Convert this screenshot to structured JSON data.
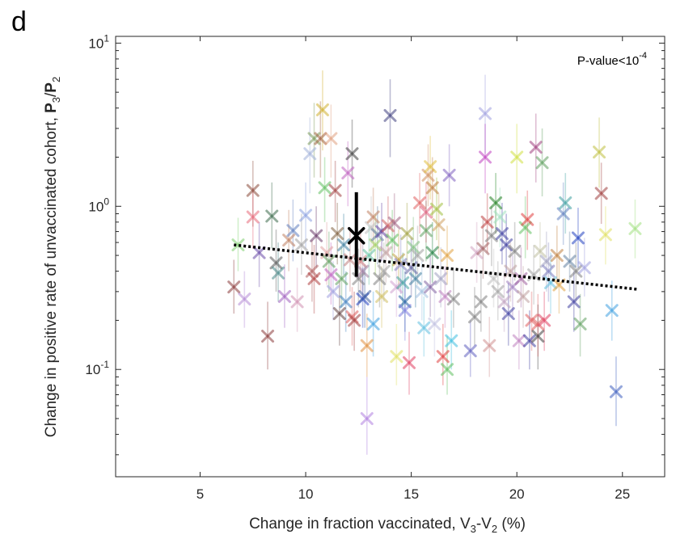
{
  "panel_label": "d",
  "chart_data": {
    "type": "scatter",
    "y_scale": "log",
    "grid": false,
    "xlim": [
      1,
      27
    ],
    "ylim": [
      0.022,
      11
    ],
    "x_ticks": [
      5,
      10,
      15,
      20,
      25
    ],
    "x_tick_labels": [
      "5",
      "10",
      "15",
      "20",
      "25"
    ],
    "y_ticks": [
      {
        "value": 0.1,
        "base": "10",
        "exp": "-1"
      },
      {
        "value": 1,
        "base": "10",
        "exp": "0"
      },
      {
        "value": 10,
        "base": "10",
        "exp": "1"
      }
    ],
    "xlabel": {
      "pre": "Change in fraction vaccinated, V",
      "sub1": "3",
      "mid": "-V",
      "sub2": "2",
      "post": " (%)"
    },
    "ylabel": {
      "pre": "Change in positive rate of unvaccinated cohort, ",
      "p1": "P",
      "s1": "3",
      "slash": "/",
      "p2": "P",
      "s2": "2"
    },
    "annotation": {
      "text": "P-value<10",
      "exp": "-4"
    },
    "trend_line": {
      "x": [
        6.6,
        25.7
      ],
      "y": [
        0.58,
        0.31
      ],
      "style": "dotted",
      "color": "#000000"
    },
    "mean_marker": {
      "x": 12.4,
      "y": 0.66,
      "ci": [
        0.37,
        1.22
      ],
      "color": "#000000"
    },
    "series": [
      {
        "points": [
          [
            6.6,
            0.32,
            0.22,
            0.47,
            "#8b3a3a"
          ],
          [
            6.8,
            0.58,
            0.4,
            0.85,
            "#7fd06f"
          ],
          [
            7.1,
            0.27,
            0.18,
            0.4,
            "#b58ad6"
          ],
          [
            7.5,
            1.25,
            0.75,
            1.9,
            "#8b4a3a"
          ],
          [
            7.5,
            0.86,
            0.55,
            1.3,
            "#e86a7a"
          ],
          [
            7.8,
            0.52,
            0.32,
            0.8,
            "#6a4aa8"
          ],
          [
            8.2,
            0.16,
            0.1,
            0.26,
            "#8b3a3a"
          ],
          [
            8.4,
            0.87,
            0.55,
            1.4,
            "#3a6a4a"
          ],
          [
            8.6,
            0.45,
            0.3,
            0.72,
            "#5a5a5a"
          ],
          [
            8.7,
            0.39,
            0.26,
            0.6,
            "#4a8a8a"
          ],
          [
            9.0,
            0.28,
            0.18,
            0.44,
            "#a060c0"
          ],
          [
            9.2,
            0.62,
            0.4,
            0.95,
            "#c08060"
          ],
          [
            9.4,
            0.71,
            0.46,
            1.1,
            "#6080c0"
          ],
          [
            9.6,
            0.26,
            0.17,
            0.42,
            "#d090b0"
          ],
          [
            9.8,
            0.58,
            0.38,
            0.9,
            "#a0a0a0"
          ],
          [
            10.0,
            0.88,
            0.55,
            1.4,
            "#8aa0e0"
          ],
          [
            10.2,
            2.1,
            1.2,
            3.5,
            "#a0b0d8"
          ],
          [
            10.3,
            0.4,
            0.26,
            0.62,
            "#b06060"
          ],
          [
            10.4,
            0.36,
            0.22,
            0.58,
            "#b04040"
          ],
          [
            10.4,
            2.6,
            1.5,
            4.3,
            "#7a9a5a"
          ],
          [
            10.5,
            0.66,
            0.42,
            1.0,
            "#6a3a6a"
          ],
          [
            10.7,
            2.6,
            1.5,
            4.4,
            "#a06040"
          ],
          [
            10.8,
            3.9,
            2.2,
            6.8,
            "#d0b030"
          ],
          [
            10.9,
            1.3,
            0.8,
            2.0,
            "#60c060"
          ],
          [
            11.0,
            0.52,
            0.33,
            0.8,
            "#e0a0a0"
          ],
          [
            11.1,
            0.46,
            0.3,
            0.7,
            "#60a060"
          ],
          [
            11.2,
            2.6,
            1.5,
            4.2,
            "#e0a080"
          ],
          [
            11.2,
            0.38,
            0.25,
            0.6,
            "#c060c0"
          ],
          [
            11.3,
            0.3,
            0.2,
            0.46,
            "#a0a0e0"
          ],
          [
            11.4,
            1.25,
            0.8,
            1.9,
            "#a04040"
          ],
          [
            11.5,
            0.68,
            0.44,
            1.05,
            "#806040"
          ],
          [
            11.6,
            0.22,
            0.14,
            0.35,
            "#604040"
          ],
          [
            11.7,
            0.36,
            0.24,
            0.56,
            "#60a060"
          ],
          [
            11.8,
            0.58,
            0.38,
            0.9,
            "#4080a0"
          ],
          [
            11.9,
            0.26,
            0.17,
            0.4,
            "#4080c0"
          ],
          [
            12.0,
            1.6,
            1.0,
            2.5,
            "#c060c0"
          ],
          [
            12.1,
            0.47,
            0.3,
            0.72,
            "#c08080"
          ],
          [
            12.2,
            2.1,
            1.3,
            3.4,
            "#404040"
          ],
          [
            12.2,
            0.21,
            0.14,
            0.32,
            "#e06060"
          ],
          [
            12.3,
            0.2,
            0.13,
            0.3,
            "#a04040"
          ],
          [
            12.5,
            0.36,
            0.24,
            0.55,
            "#808080"
          ],
          [
            12.6,
            0.46,
            0.3,
            0.7,
            "#d08080"
          ],
          [
            12.7,
            0.27,
            0.18,
            0.42,
            "#2040c0"
          ],
          [
            12.7,
            0.4,
            0.27,
            0.6,
            "#a080a0"
          ],
          [
            12.8,
            0.28,
            0.18,
            0.44,
            "#4060a0"
          ],
          [
            12.9,
            0.14,
            0.09,
            0.22,
            "#e09040"
          ],
          [
            12.9,
            0.05,
            0.03,
            0.09,
            "#b080e0"
          ],
          [
            13.0,
            0.5,
            0.33,
            0.76,
            "#60c0a0"
          ],
          [
            13.1,
            0.74,
            0.48,
            1.15,
            "#c0c0c0"
          ],
          [
            13.2,
            0.86,
            0.56,
            1.3,
            "#c08060"
          ],
          [
            13.2,
            0.19,
            0.12,
            0.3,
            "#40a0e0"
          ],
          [
            13.3,
            0.58,
            0.38,
            0.9,
            "#a0d060"
          ],
          [
            13.4,
            0.67,
            0.44,
            1.0,
            "#6080a0"
          ],
          [
            13.5,
            0.36,
            0.24,
            0.55,
            "#808080"
          ],
          [
            13.6,
            0.28,
            0.18,
            0.43,
            "#d0c060"
          ],
          [
            13.6,
            0.7,
            0.46,
            1.05,
            "#6040a0"
          ],
          [
            13.7,
            0.4,
            0.26,
            0.6,
            "#a0a0a0"
          ],
          [
            13.8,
            0.52,
            0.34,
            0.8,
            "#c0a0a0"
          ],
          [
            13.9,
            0.76,
            0.5,
            1.15,
            "#d06060"
          ],
          [
            14.0,
            3.6,
            2.0,
            6.0,
            "#404080"
          ],
          [
            14.1,
            0.62,
            0.4,
            0.95,
            "#60c060"
          ],
          [
            14.2,
            0.79,
            0.52,
            1.2,
            "#a06080"
          ],
          [
            14.3,
            0.32,
            0.21,
            0.5,
            "#d0a0d0"
          ],
          [
            14.3,
            0.12,
            0.08,
            0.19,
            "#e0e060"
          ],
          [
            14.4,
            0.47,
            0.31,
            0.72,
            "#c0a040"
          ],
          [
            14.5,
            0.44,
            0.29,
            0.67,
            "#8080c0"
          ],
          [
            14.6,
            0.34,
            0.22,
            0.52,
            "#40a0a0"
          ],
          [
            14.7,
            0.26,
            0.17,
            0.4,
            "#2060a0"
          ],
          [
            14.7,
            0.23,
            0.15,
            0.36,
            "#8080e0"
          ],
          [
            14.8,
            0.68,
            0.44,
            1.05,
            "#a0a040"
          ],
          [
            14.9,
            0.11,
            0.07,
            0.17,
            "#e04060"
          ],
          [
            15.0,
            0.42,
            0.28,
            0.64,
            "#6060a0"
          ],
          [
            15.1,
            0.56,
            0.37,
            0.86,
            "#80c080"
          ],
          [
            15.2,
            0.36,
            0.24,
            0.56,
            "#4080a0"
          ],
          [
            15.3,
            0.5,
            0.33,
            0.76,
            "#a0a0a0"
          ],
          [
            15.4,
            1.05,
            0.68,
            1.6,
            "#e06060"
          ],
          [
            15.5,
            0.3,
            0.2,
            0.46,
            "#a0c0e0"
          ],
          [
            15.6,
            0.18,
            0.12,
            0.28,
            "#60c0e0"
          ],
          [
            15.7,
            0.71,
            0.46,
            1.08,
            "#60a060"
          ],
          [
            15.7,
            0.92,
            0.6,
            1.4,
            "#e06080"
          ],
          [
            15.8,
            1.55,
            1.0,
            2.4,
            "#d09060"
          ],
          [
            15.9,
            1.75,
            1.1,
            2.7,
            "#e0c040"
          ],
          [
            15.9,
            0.32,
            0.21,
            0.5,
            "#8060a0"
          ],
          [
            16.0,
            0.52,
            0.34,
            0.8,
            "#208040"
          ],
          [
            16.0,
            1.3,
            0.85,
            2.0,
            "#c08040"
          ],
          [
            16.1,
            0.19,
            0.12,
            0.3,
            "#c0c0e0"
          ],
          [
            16.2,
            0.96,
            0.62,
            1.5,
            "#a0c040"
          ],
          [
            16.3,
            0.77,
            0.5,
            1.2,
            "#d0a060"
          ],
          [
            16.4,
            0.36,
            0.24,
            0.56,
            "#a0a0c0"
          ],
          [
            16.5,
            0.12,
            0.08,
            0.19,
            "#e04040"
          ],
          [
            16.6,
            0.28,
            0.18,
            0.43,
            "#c080c0"
          ],
          [
            16.7,
            0.1,
            0.07,
            0.16,
            "#60c060"
          ],
          [
            16.7,
            0.5,
            0.33,
            0.76,
            "#e0a040"
          ],
          [
            16.8,
            1.55,
            1.0,
            2.4,
            "#8060c0"
          ],
          [
            16.9,
            0.15,
            0.1,
            0.23,
            "#40c0e0"
          ],
          [
            17.0,
            0.27,
            0.18,
            0.42,
            "#808080"
          ],
          [
            17.8,
            0.13,
            0.09,
            0.2,
            "#6060c0"
          ],
          [
            18.0,
            0.21,
            0.14,
            0.32,
            "#808080"
          ],
          [
            18.1,
            0.52,
            0.34,
            0.8,
            "#d0a0c0"
          ],
          [
            18.3,
            0.26,
            0.17,
            0.4,
            "#808080"
          ],
          [
            18.4,
            0.55,
            0.36,
            0.84,
            "#a06060"
          ],
          [
            18.5,
            3.7,
            2.1,
            6.4,
            "#a0a0e0"
          ],
          [
            18.5,
            2.0,
            1.2,
            3.2,
            "#c040c0"
          ],
          [
            18.6,
            0.8,
            0.52,
            1.2,
            "#c04040"
          ],
          [
            18.7,
            0.14,
            0.09,
            0.21,
            "#d09090"
          ],
          [
            18.8,
            0.66,
            0.43,
            1.0,
            "#808080"
          ],
          [
            18.9,
            0.36,
            0.24,
            0.55,
            "#c0c0c0"
          ],
          [
            19.0,
            1.05,
            0.68,
            1.6,
            "#208020"
          ],
          [
            19.1,
            0.3,
            0.2,
            0.46,
            "#a0a0a0"
          ],
          [
            19.2,
            0.86,
            0.56,
            1.3,
            "#a0e0c0"
          ],
          [
            19.3,
            0.68,
            0.44,
            1.05,
            "#4040a0"
          ],
          [
            19.4,
            0.26,
            0.17,
            0.4,
            "#c0a0c0"
          ],
          [
            19.5,
            0.58,
            0.38,
            0.9,
            "#4040a0"
          ],
          [
            19.6,
            0.22,
            0.14,
            0.34,
            "#4040a0"
          ],
          [
            19.7,
            0.4,
            0.26,
            0.6,
            "#c0a0a0"
          ],
          [
            19.8,
            0.32,
            0.21,
            0.5,
            "#a080c0"
          ],
          [
            19.9,
            0.53,
            0.35,
            0.8,
            "#808080"
          ],
          [
            20.0,
            2.0,
            1.2,
            3.2,
            "#d0e040"
          ],
          [
            20.1,
            0.15,
            0.1,
            0.23,
            "#c080c0"
          ],
          [
            20.2,
            0.36,
            0.24,
            0.56,
            "#a060a0"
          ],
          [
            20.3,
            0.28,
            0.18,
            0.43,
            "#c0a0a0"
          ],
          [
            20.4,
            0.74,
            0.48,
            1.15,
            "#60c060"
          ],
          [
            20.5,
            0.83,
            0.54,
            1.25,
            "#e04040"
          ],
          [
            20.6,
            0.15,
            0.1,
            0.23,
            "#4040a0"
          ],
          [
            20.7,
            0.2,
            0.13,
            0.3,
            "#e06060"
          ],
          [
            20.8,
            0.38,
            0.25,
            0.58,
            "#a0a0a0"
          ],
          [
            20.9,
            2.3,
            1.4,
            3.7,
            "#a04080"
          ],
          [
            21.0,
            0.16,
            0.1,
            0.25,
            "#404040"
          ],
          [
            21.0,
            0.19,
            0.12,
            0.29,
            "#e06060"
          ],
          [
            21.1,
            0.53,
            0.35,
            0.8,
            "#c0c0a0"
          ],
          [
            21.2,
            1.85,
            1.15,
            3.0,
            "#60a060"
          ],
          [
            21.3,
            0.2,
            0.13,
            0.3,
            "#e04060"
          ],
          [
            21.4,
            0.46,
            0.3,
            0.7,
            "#a0a0c0"
          ],
          [
            21.5,
            0.4,
            0.26,
            0.6,
            "#8080c0"
          ],
          [
            21.6,
            0.34,
            0.22,
            0.52,
            "#60c0e0"
          ],
          [
            21.9,
            0.5,
            0.33,
            0.76,
            "#c08040"
          ],
          [
            22.0,
            0.33,
            0.22,
            0.5,
            "#e0a040"
          ],
          [
            22.2,
            0.9,
            0.58,
            1.4,
            "#6080c0"
          ],
          [
            22.3,
            1.05,
            0.68,
            1.6,
            "#40a0a0"
          ],
          [
            22.5,
            0.46,
            0.3,
            0.7,
            "#6080a0"
          ],
          [
            22.7,
            0.26,
            0.17,
            0.4,
            "#4040a0"
          ],
          [
            22.8,
            0.4,
            0.26,
            0.6,
            "#808080"
          ],
          [
            22.9,
            0.64,
            0.42,
            0.98,
            "#2040c0"
          ],
          [
            23.0,
            0.19,
            0.12,
            0.29,
            "#60a060"
          ],
          [
            23.2,
            0.42,
            0.28,
            0.64,
            "#a0a0e0"
          ],
          [
            23.9,
            2.15,
            1.3,
            3.5,
            "#c0c040"
          ],
          [
            24.0,
            1.2,
            0.78,
            1.85,
            "#a04040"
          ],
          [
            24.2,
            0.67,
            0.44,
            1.0,
            "#e0e060"
          ],
          [
            24.5,
            0.23,
            0.15,
            0.35,
            "#40a0e0"
          ],
          [
            24.7,
            0.073,
            0.045,
            0.12,
            "#4060c0"
          ],
          [
            25.6,
            0.73,
            0.48,
            1.1,
            "#a0e080"
          ]
        ]
      }
    ]
  }
}
